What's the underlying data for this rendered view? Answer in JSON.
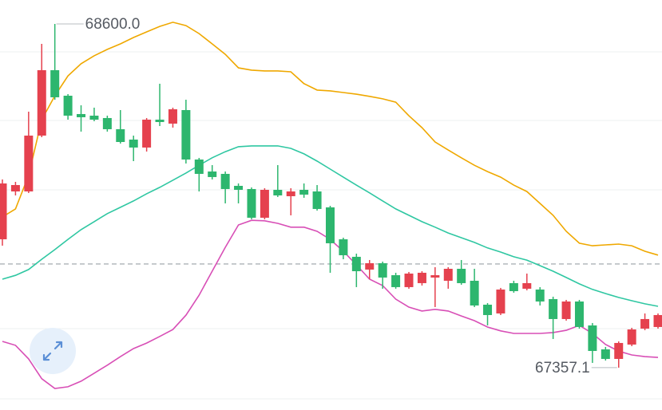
{
  "chart_data": {
    "type": "candlestick",
    "ylim": [
      67204,
      68686.5
    ],
    "open": [
      67821.3,
      67994.3,
      67994.3,
      68196.2,
      68432.7,
      68340.4,
      68274.1,
      68268.3,
      68259.7,
      68219.3,
      68181.8,
      68153.0,
      68253.9,
      68239.5,
      68288.5,
      68109.7,
      68066.4,
      68057.8,
      68014.5,
      68003.0,
      67899.2,
      68000.1,
      67977.0,
      68000.1,
      67994.3,
      67936.7,
      67821.3,
      67757.9,
      67711.7,
      67734.8,
      67691.5,
      67648.3,
      67662.7,
      67682.9,
      67671.3,
      67714.6,
      67671.3,
      67584.8,
      67553.1,
      67662.7,
      67642.5,
      67639.6,
      67605.0,
      67532.9,
      67596.3,
      67509.8,
      67423.3,
      67388.7,
      67440.6,
      67498.3,
      67504.1
    ],
    "high": [
      68037.6,
      68028.9,
      68282.7,
      68527.9,
      68600.0,
      68346.2,
      68305.8,
      68297.2,
      68268.3,
      68288.5,
      68196.2,
      68259.7,
      68383.7,
      68297.2,
      68326.0,
      68115.5,
      68089.5,
      68066.4,
      68023.2,
      68008.8,
      68005.9,
      68089.5,
      68005.9,
      68023.2,
      68017.4,
      67942.4,
      67827.1,
      67769.4,
      67746.3,
      67740.6,
      67700.2,
      67703.1,
      67705.9,
      67720.4,
      67720.4,
      67746.3,
      67714.6,
      67590.6,
      67645.4,
      67671.3,
      67697.3,
      67648.3,
      67613.7,
      67602.1,
      67602.1,
      67518.5,
      67432.0,
      67452.1,
      67501.2,
      67553.1,
      67553.1
    ],
    "low": [
      67798.2,
      67979.9,
      67988.6,
      68190.5,
      68326.0,
      68253.9,
      68210.6,
      68248.1,
      68210.6,
      68167.4,
      68103.9,
      68138.5,
      68230.8,
      68225.1,
      68095.3,
      67994.3,
      68037.6,
      67951.1,
      67951.1,
      67893.4,
      67893.4,
      67974.2,
      67907.8,
      67971.3,
      67925.1,
      67700.2,
      67749.2,
      67648.3,
      67677.1,
      67642.5,
      67642.5,
      67642.5,
      67654.0,
      67576.2,
      67642.5,
      67656.9,
      67576.2,
      67509.8,
      67547.3,
      67628.1,
      67636.7,
      67581.9,
      67460.8,
      67527.1,
      67498.3,
      67374.3,
      67382.9,
      67357.1,
      67434.8,
      67492.5,
      67498.3
    ],
    "close": [
      68023.2,
      68017.4,
      68196.2,
      68432.7,
      68334.7,
      68268.3,
      68262.6,
      68253.9,
      68219.3,
      68173.1,
      68153.0,
      68253.9,
      68245.2,
      68291.4,
      68109.7,
      68057.8,
      68046.3,
      68003.0,
      68000.1,
      67899.2,
      68000.1,
      67979.9,
      67994.3,
      67982.8,
      67930.9,
      67806.9,
      67763.6,
      67705.9,
      67734.8,
      67682.9,
      67648.3,
      67697.3,
      67700.2,
      67691.5,
      67714.6,
      67662.7,
      67581.9,
      67547.3,
      67639.6,
      67633.8,
      67662.7,
      67596.3,
      67532.9,
      67596.3,
      67504.1,
      67417.5,
      67388.7,
      67446.4,
      67495.4,
      67532.9,
      67547.3
    ],
    "up_color": "#e5414e",
    "down_color": "#2db66e",
    "series": [
      {
        "color": "#efa800",
        "values": [
          67902,
          67931,
          68052,
          68254,
          68340,
          68412,
          68456,
          68485,
          68508,
          68528,
          68551,
          68571,
          68591,
          68606,
          68594,
          68565,
          68528,
          68490,
          68441,
          68433,
          68430,
          68430,
          68427,
          68384,
          68361,
          68358,
          68352,
          68346,
          68338,
          68329,
          68317,
          68268,
          68225,
          68173,
          68144,
          68116,
          68089,
          68066,
          68046,
          68017,
          67994,
          67951,
          67908,
          67850,
          67807,
          67798,
          67801,
          67804,
          67798,
          67778,
          67764
        ]
      },
      {
        "color": "#2fc7a2",
        "values": [
          67677,
          67691,
          67712,
          67749,
          67784,
          67821,
          67856,
          67885,
          67914,
          67937,
          67960,
          67986,
          68009,
          68035,
          68061,
          68089,
          68116,
          68138,
          68156,
          68159,
          68159,
          68159,
          68150,
          68130,
          68104,
          68075,
          68046,
          68017,
          67989,
          67960,
          67931,
          67908,
          67885,
          67865,
          67844,
          67827,
          67810,
          67790,
          67775,
          67758,
          67746,
          67726,
          67706,
          67683,
          67660,
          67640,
          67625,
          67611,
          67599,
          67588,
          67579
        ]
      },
      {
        "color": "#d84fb6",
        "values": [
          67452,
          67438,
          67389,
          67317,
          67282,
          67288,
          67308,
          67337,
          67366,
          67397,
          67426,
          67446,
          67470,
          67495,
          67547,
          67619,
          67706,
          67792,
          67873,
          67890,
          67888,
          67879,
          67865,
          67865,
          67850,
          67821,
          67778,
          67729,
          67677,
          67654,
          67605,
          67576,
          67562,
          67568,
          67562,
          67544,
          67527,
          67504,
          67490,
          67481,
          67481,
          67481,
          67484,
          67492,
          67510,
          67481,
          67441,
          67417,
          67403,
          67397,
          67394
        ]
      }
    ],
    "last_price": 67732,
    "annotations": [
      {
        "value": 68600.0,
        "label": "68600.0"
      },
      {
        "value": 67357.1,
        "label": "67357.1"
      }
    ]
  }
}
